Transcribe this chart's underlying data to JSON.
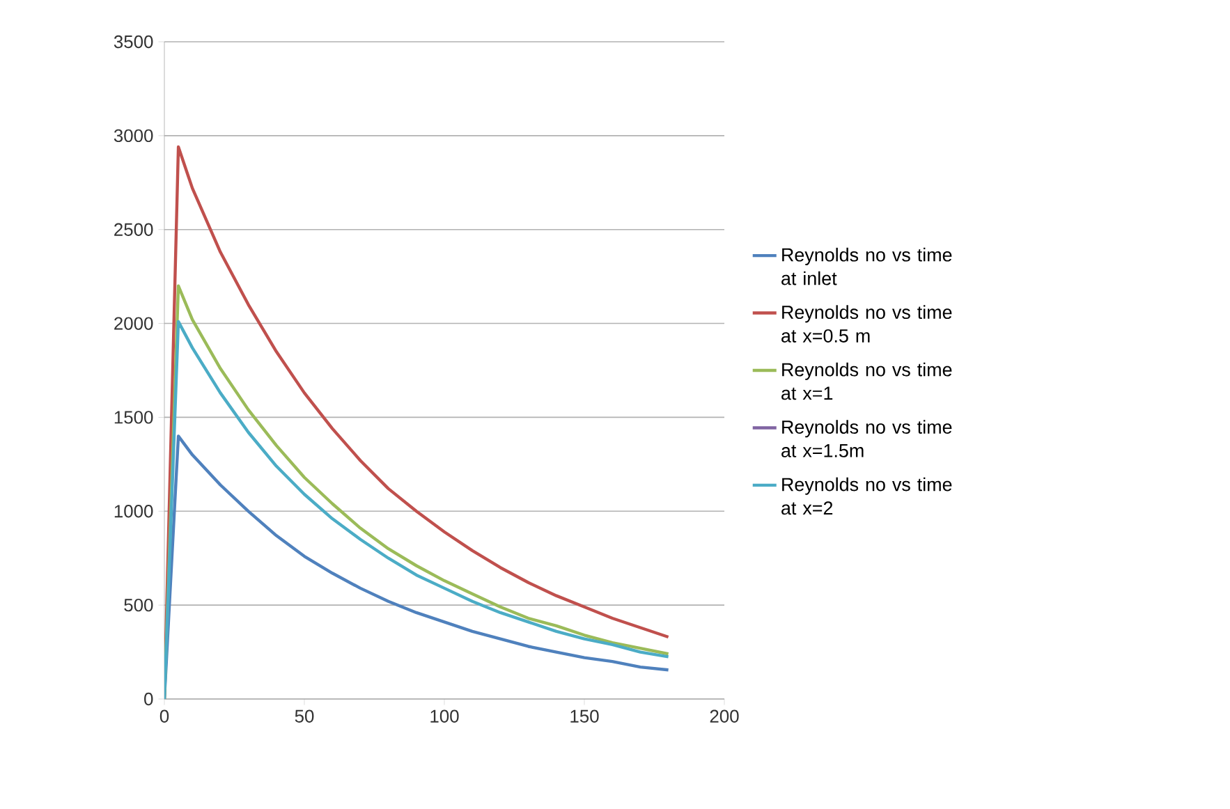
{
  "chart_data": {
    "type": "line",
    "x": [
      0,
      5,
      10,
      20,
      30,
      40,
      50,
      60,
      70,
      80,
      90,
      100,
      110,
      120,
      130,
      140,
      150,
      160,
      170,
      180
    ],
    "series": [
      {
        "name": "Reynolds no vs time at inlet",
        "color": "#4f81bd",
        "values": [
          0,
          1400,
          1300,
          1140,
          1000,
          870,
          760,
          670,
          590,
          520,
          460,
          410,
          360,
          320,
          280,
          250,
          220,
          200,
          170,
          155
        ]
      },
      {
        "name": "Reynolds no vs time at x=0.5 m",
        "color": "#c0504d",
        "values": [
          0,
          2940,
          2720,
          2380,
          2100,
          1850,
          1630,
          1440,
          1270,
          1120,
          1000,
          890,
          790,
          700,
          620,
          550,
          490,
          430,
          380,
          330
        ]
      },
      {
        "name": "Reynolds no vs time at x=1",
        "color": "#9bbb59",
        "values": [
          0,
          2200,
          2020,
          1760,
          1540,
          1350,
          1180,
          1040,
          910,
          800,
          710,
          630,
          560,
          490,
          430,
          390,
          340,
          300,
          270,
          240
        ]
      },
      {
        "name": "Reynolds no vs time at x=1.5m",
        "color": "#8064a2",
        "values": [
          null,
          null,
          null,
          null,
          null,
          null,
          null,
          null,
          null,
          null,
          null,
          null,
          null,
          null,
          null,
          null,
          null,
          null,
          null,
          null
        ]
      },
      {
        "name": "Reynolds no vs time at x=2",
        "color": "#4bacc6",
        "values": [
          0,
          2010,
          1870,
          1630,
          1420,
          1240,
          1090,
          960,
          850,
          750,
          660,
          590,
          520,
          460,
          410,
          360,
          320,
          290,
          250,
          225
        ]
      }
    ],
    "xlim": [
      0,
      200
    ],
    "xticks": [
      0,
      50,
      100,
      150,
      200
    ],
    "ylim": [
      0,
      3500
    ],
    "yticks": [
      0,
      500,
      1000,
      1500,
      2000,
      2500,
      3000,
      3500
    ],
    "grid": "y",
    "legend": "right",
    "marker": "none",
    "line_style": "solid"
  }
}
